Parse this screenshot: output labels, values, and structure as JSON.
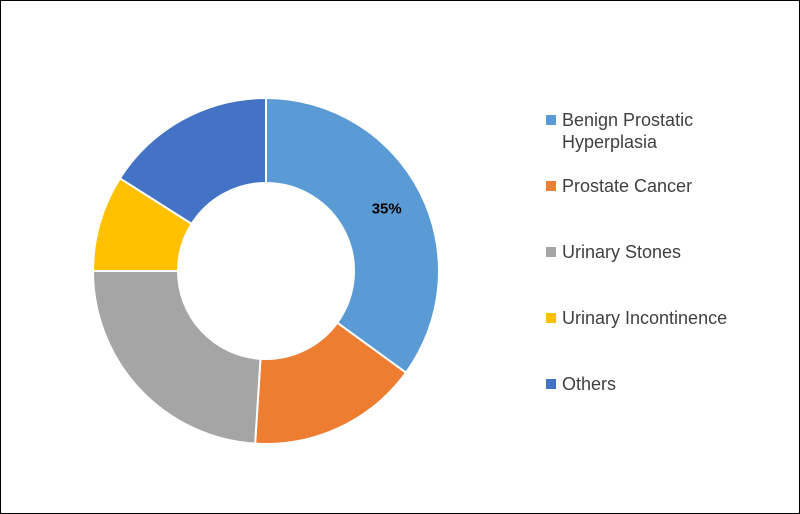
{
  "chart_data": {
    "type": "donut",
    "categories": [
      "Benign Prostatic Hyperplasia",
      "Prostate Cancer",
      "Urinary Stones",
      "Urinary Incontinence",
      "Others"
    ],
    "values": [
      35,
      16,
      24,
      9,
      16
    ],
    "value_labels": [
      "35%",
      null,
      null,
      null,
      null
    ],
    "colors": [
      "#5b9bd5",
      "#ed7d31",
      "#a5a5a5",
      "#ffc000",
      "#4472c4"
    ],
    "legend": "right"
  }
}
